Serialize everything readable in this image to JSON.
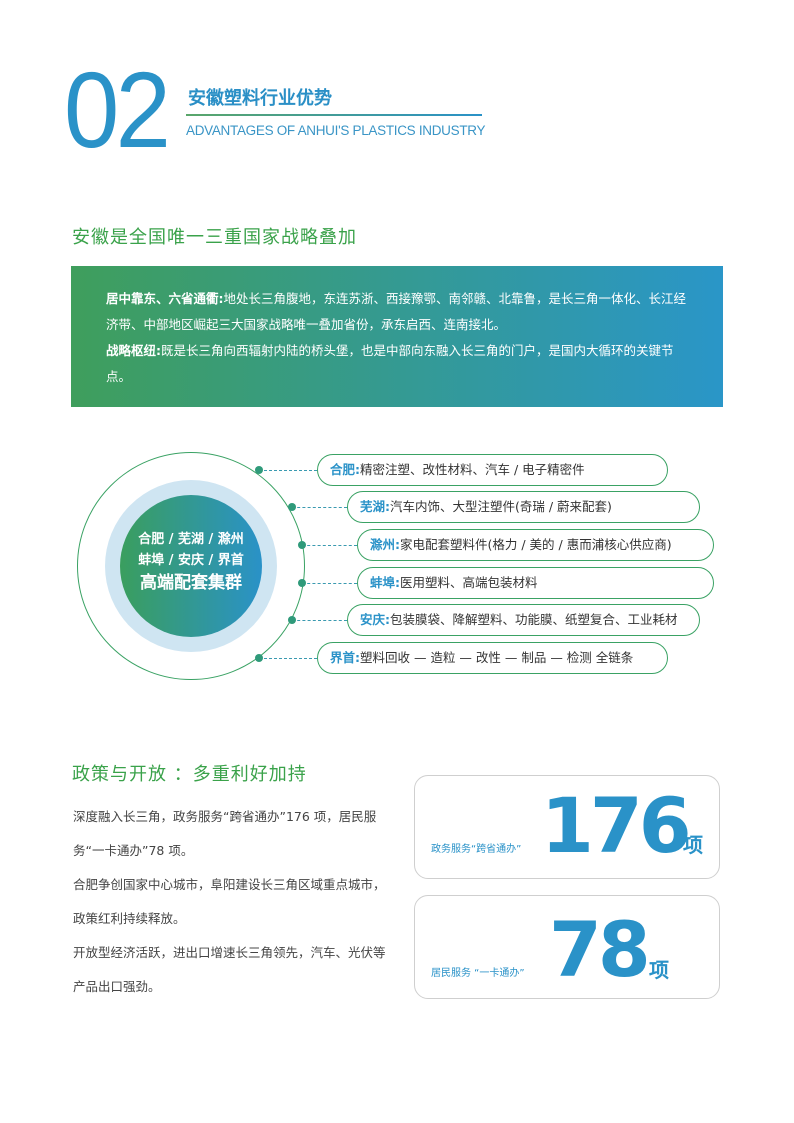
{
  "header": {
    "number": "02",
    "title": "安徽塑料行业优势",
    "subtitle": "ADVANTAGES OF ANHUI'S PLASTICS INDUSTRY"
  },
  "section1": {
    "heading": "安徽是全国唯一三重国家战略叠加",
    "p1_label": "居中靠东、六省通衢:",
    "p1_text": "地处长三角腹地，东连苏浙、西接豫鄂、南邻赣、北靠鲁，是长三角一体化、长江经济带、中部地区崛起三大国家战略唯一叠加省份，承东启西、连南接北。",
    "p2_label": "战略枢纽:",
    "p2_text": "既是长三角向西辐射内陆的桥头堡，也是中部向东融入长三角的门户，是国内大循环的关键节点。"
  },
  "cluster": {
    "center_line1": "合肥 / 芜湖 / 滁州",
    "center_line2": "蚌埠 / 安庆 / 界首",
    "center_line3": "高端配套集群",
    "items": [
      {
        "city": "合肥:",
        "text": "精密注塑、改性材料、汽车 / 电子精密件"
      },
      {
        "city": "芜湖:",
        "text": "汽车内饰、大型注塑件(奇瑞 / 蔚来配套)"
      },
      {
        "city": "滁州:",
        "text": "家电配套塑料件(格力 / 美的 / 惠而浦核心供应商)"
      },
      {
        "city": "蚌埠:",
        "text": "医用塑料、高端包装材料"
      },
      {
        "city": "安庆:",
        "text": "包装膜袋、降解塑料、功能膜、纸塑复合、工业耗材"
      },
      {
        "city": "界首:",
        "text": "塑料回收 — 造粒 — 改性 — 制品 — 检测 全链条"
      }
    ]
  },
  "section2": {
    "heading": "政策与开放 ：多重利好加持",
    "paragraphs": [
      "深度融入长三角，政务服务“跨省通办”176 项，居民服务“一卡通办”78 项。",
      "合肥争创国家中心城市，阜阳建设长三角区域重点城市，政策红利持续释放。",
      "开放型经济活跃，进出口增速长三角领先，汽车、光伏等产品出口强劲。"
    ],
    "cards": [
      {
        "label": "政务服务“跨省通办”",
        "value": "176",
        "unit": "项"
      },
      {
        "label": "居民服务 “一卡通办”",
        "value": "78",
        "unit": "项"
      }
    ]
  },
  "colors": {
    "blue": "#2a92c8",
    "green": "#3aa24a"
  }
}
